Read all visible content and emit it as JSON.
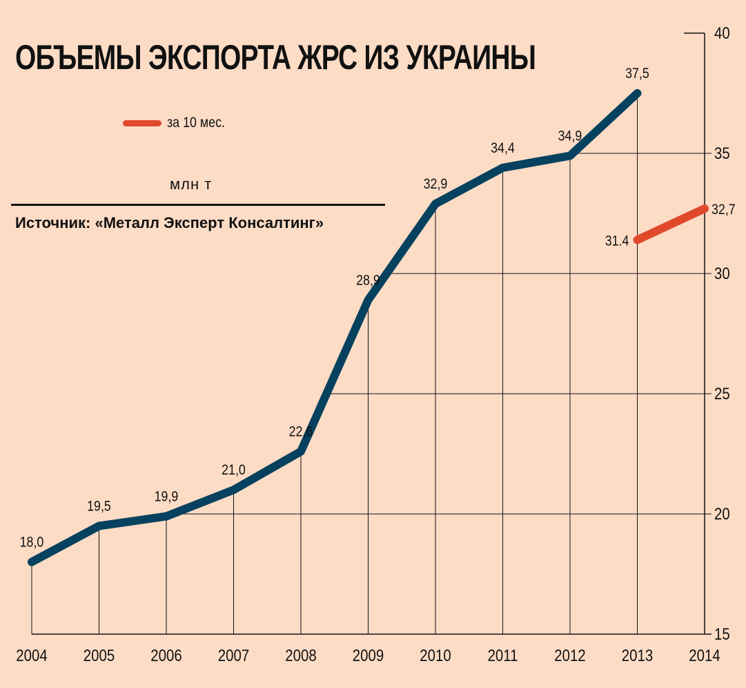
{
  "title": "ОБЪЕМЫ ЭКСПОРТА ЖРС ИЗ УКРАИНЫ",
  "unit": "млн т",
  "source": "Источник: «Металл Эксперт Консалтинг»",
  "legend": {
    "label": "за 10 мес.",
    "color": "#e0492c"
  },
  "chart_data": {
    "type": "line",
    "x": [
      "2004",
      "2005",
      "2006",
      "2007",
      "2008",
      "2009",
      "2010",
      "2011",
      "2012",
      "2013",
      "2014"
    ],
    "ylim": [
      15,
      40
    ],
    "yticks": [
      15,
      20,
      25,
      30,
      35,
      40
    ],
    "ytick_labels": [
      "15",
      "20",
      "25",
      "30",
      "35",
      "40"
    ],
    "grid": true,
    "series": [
      {
        "color": "#06425f",
        "points": [
          {
            "x": "2004",
            "y": 18.0,
            "label": "18,0"
          },
          {
            "x": "2005",
            "y": 19.5,
            "label": "19,5"
          },
          {
            "x": "2006",
            "y": 19.9,
            "label": "19,9"
          },
          {
            "x": "2007",
            "y": 21.0,
            "label": "21,0"
          },
          {
            "x": "2008",
            "y": 22.6,
            "label": "22,6"
          },
          {
            "x": "2009",
            "y": 28.9,
            "label": "28,9"
          },
          {
            "x": "2010",
            "y": 32.9,
            "label": "32,9"
          },
          {
            "x": "2011",
            "y": 34.4,
            "label": "34,4"
          },
          {
            "x": "2012",
            "y": 34.9,
            "label": "34,9"
          },
          {
            "x": "2013",
            "y": 37.5,
            "label": "37,5"
          }
        ]
      },
      {
        "name": "за 10 мес.",
        "color": "#e0492c",
        "points": [
          {
            "x": "2013",
            "y": 31.4,
            "label": "31.4"
          },
          {
            "x": "2014",
            "y": 32.7,
            "label": "32,7"
          }
        ]
      }
    ]
  }
}
